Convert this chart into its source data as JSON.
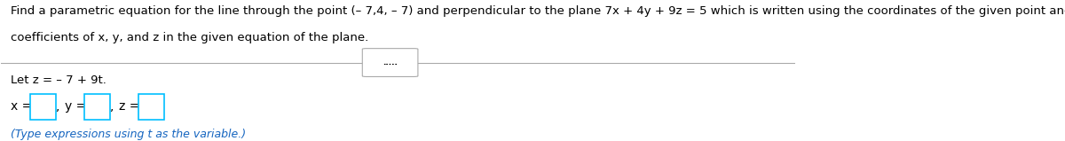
{
  "bg_color": "#ffffff",
  "line1": "Find a parametric equation for the line through the point (– 7,4, – 7) and perpendicular to the plane 7x + 4y + 9z = 5 which is written using the coordinates of the given point and the",
  "line2": "coefficients of x, y, and z in the given equation of the plane.",
  "divider_dots": ".....",
  "let_z_text": "Let z = – 7 + 9t.",
  "x_label": "x =",
  "y_label": "y =",
  "z_label": "z =",
  "hint_text": "(Type expressions using t as the variable.)",
  "text_color": "#000000",
  "blue_color": "#1565C0",
  "box_edge_color": "#00BFFF",
  "hint_color": "#1565C0",
  "font_size_main": 9.5,
  "font_size_small": 9.0
}
